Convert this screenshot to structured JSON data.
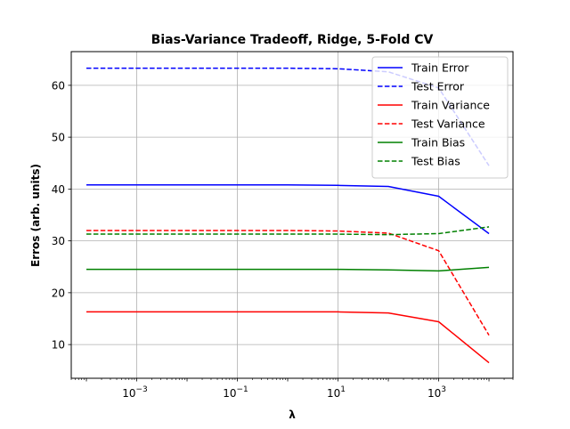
{
  "chart_data": {
    "type": "line",
    "title": "Bias-Variance Tradeoff, Ridge, 5-Fold CV",
    "xlabel": "λ",
    "ylabel": "Erros (arb. units)",
    "xscale": "log",
    "xlim": [
      5e-05,
      30000
    ],
    "ylim": [
      3.5,
      66.5
    ],
    "grid": true,
    "legend_position": "top-right",
    "x": [
      0.0001,
      0.001,
      0.01,
      0.1,
      1,
      10,
      100,
      1000,
      10000
    ],
    "x_ticks": [
      {
        "value": 0.001,
        "base": "10",
        "exp": "−3"
      },
      {
        "value": 0.1,
        "base": "10",
        "exp": "−1"
      },
      {
        "value": 10,
        "base": "10",
        "exp": "1"
      },
      {
        "value": 1000,
        "base": "10",
        "exp": "3"
      }
    ],
    "y_ticks": [
      10,
      20,
      30,
      40,
      50,
      60
    ],
    "series": [
      {
        "name": "Train Error",
        "color": "#0000ff",
        "dash": false,
        "values": [
          40.8,
          40.8,
          40.8,
          40.8,
          40.8,
          40.7,
          40.5,
          38.6,
          31.4
        ]
      },
      {
        "name": "Test Error",
        "color": "#0000ff",
        "dash": true,
        "values": [
          63.3,
          63.3,
          63.3,
          63.3,
          63.3,
          63.2,
          62.6,
          59.5,
          44.5
        ]
      },
      {
        "name": "Train Variance",
        "color": "#ff0000",
        "dash": false,
        "values": [
          16.3,
          16.3,
          16.3,
          16.3,
          16.3,
          16.3,
          16.1,
          14.4,
          6.5
        ]
      },
      {
        "name": "Test Variance",
        "color": "#ff0000",
        "dash": true,
        "values": [
          32.0,
          32.0,
          32.0,
          32.0,
          32.0,
          31.9,
          31.5,
          28.1,
          11.8
        ]
      },
      {
        "name": "Train Bias",
        "color": "#008000",
        "dash": false,
        "values": [
          24.5,
          24.5,
          24.5,
          24.5,
          24.5,
          24.5,
          24.4,
          24.2,
          24.9
        ]
      },
      {
        "name": "Test Bias",
        "color": "#008000",
        "dash": true,
        "values": [
          31.3,
          31.3,
          31.3,
          31.3,
          31.3,
          31.3,
          31.2,
          31.4,
          32.7
        ]
      }
    ]
  }
}
